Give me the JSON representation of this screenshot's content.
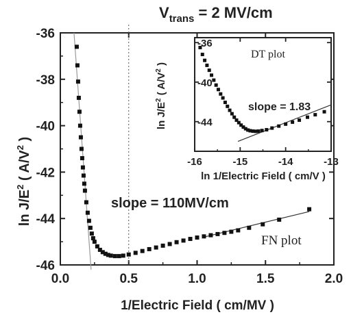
{
  "chart_data": [
    {
      "id": "main",
      "type": "scatter",
      "title_main": "V",
      "title_sub": "trans",
      "title_rest": " = 2 MV/cm",
      "xlabel": "1/Electric Field ( cm/MV )",
      "ylabel_main": "ln J/E",
      "ylabel_sup": "2",
      "ylabel_unit_open": " ( A/V",
      "ylabel_unit_sup": "2",
      "ylabel_unit_close": " )",
      "xlim": [
        0.0,
        2.0
      ],
      "ylim": [
        -46,
        -36
      ],
      "x_ticks": [
        "0.0",
        "0.5",
        "1.0",
        "1.5",
        "2.0"
      ],
      "y_ticks": [
        "-36",
        "-38",
        "-40",
        "-42",
        "-44",
        "-46"
      ],
      "grid": false,
      "annotation_slope": "slope = 110MV/cm",
      "annotation_plot": "FN plot",
      "vertical_marker_x": 0.5,
      "series": [
        {
          "marker": "square",
          "color": "#111111",
          "points": [
            [
              0.12,
              -36.6
            ],
            [
              0.125,
              -37.4
            ],
            [
              0.13,
              -38.1
            ],
            [
              0.135,
              -38.8
            ],
            [
              0.14,
              -39.4
            ],
            [
              0.145,
              -40.0
            ],
            [
              0.15,
              -40.5
            ],
            [
              0.155,
              -41.0
            ],
            [
              0.16,
              -41.4
            ],
            [
              0.165,
              -41.8
            ],
            [
              0.17,
              -42.15
            ],
            [
              0.175,
              -42.5
            ],
            [
              0.18,
              -42.8
            ],
            [
              0.19,
              -43.3
            ],
            [
              0.2,
              -43.75
            ],
            [
              0.21,
              -44.1
            ],
            [
              0.22,
              -44.4
            ],
            [
              0.23,
              -44.65
            ],
            [
              0.24,
              -44.85
            ],
            [
              0.25,
              -45.0
            ],
            [
              0.27,
              -45.2
            ],
            [
              0.29,
              -45.35
            ],
            [
              0.31,
              -45.45
            ],
            [
              0.33,
              -45.52
            ],
            [
              0.35,
              -45.57
            ],
            [
              0.37,
              -45.6
            ],
            [
              0.4,
              -45.62
            ],
            [
              0.43,
              -45.62
            ],
            [
              0.46,
              -45.6
            ],
            [
              0.5,
              -45.55
            ],
            [
              0.55,
              -45.48
            ],
            [
              0.6,
              -45.4
            ],
            [
              0.65,
              -45.32
            ],
            [
              0.7,
              -45.25
            ],
            [
              0.75,
              -45.17
            ],
            [
              0.8,
              -45.1
            ],
            [
              0.85,
              -45.02
            ],
            [
              0.9,
              -44.95
            ],
            [
              0.95,
              -44.88
            ],
            [
              1.0,
              -44.82
            ],
            [
              1.05,
              -44.77
            ],
            [
              1.1,
              -44.72
            ],
            [
              1.15,
              -44.67
            ],
            [
              1.2,
              -44.62
            ],
            [
              1.25,
              -44.57
            ],
            [
              1.3,
              -44.51
            ],
            [
              1.38,
              -44.4
            ],
            [
              1.48,
              -44.25
            ],
            [
              1.6,
              -44.05
            ],
            [
              1.82,
              -43.6
            ]
          ]
        }
      ],
      "fit_lines": [
        {
          "from": [
            1.05,
            -44.8
          ],
          "to": [
            1.82,
            -43.7
          ],
          "color": "#333333"
        },
        {
          "from": [
            0.1,
            -36.0
          ],
          "to": [
            0.225,
            -46.2
          ],
          "color": "#999999"
        }
      ]
    },
    {
      "id": "inset",
      "type": "scatter",
      "xlabel": "ln 1/Electric Field ( cm/V )",
      "ylabel_main": "ln J/E",
      "ylabel_sup": "2",
      "ylabel_unit_open": " ( A/V",
      "ylabel_unit_sup": "2",
      "ylabel_unit_close": " )",
      "xlim": [
        -16,
        -13
      ],
      "ylim": [
        -47,
        -35.5
      ],
      "x_ticks": [
        "-16",
        "-15",
        "-14",
        "-13"
      ],
      "y_ticks": [
        "-36",
        "-40",
        "-44"
      ],
      "grid": false,
      "annotation_plot": "DT  plot",
      "annotation_slope": "slope = 1.83",
      "series": [
        {
          "marker": "square",
          "color": "#111111",
          "points": [
            [
              -15.88,
              -36.5
            ],
            [
              -15.83,
              -37.2
            ],
            [
              -15.78,
              -37.8
            ],
            [
              -15.73,
              -38.3
            ],
            [
              -15.68,
              -38.8
            ],
            [
              -15.63,
              -39.3
            ],
            [
              -15.58,
              -39.8
            ],
            [
              -15.53,
              -40.3
            ],
            [
              -15.48,
              -40.75
            ],
            [
              -15.43,
              -41.2
            ],
            [
              -15.38,
              -41.6
            ],
            [
              -15.33,
              -42.05
            ],
            [
              -15.28,
              -42.45
            ],
            [
              -15.23,
              -42.85
            ],
            [
              -15.18,
              -43.2
            ],
            [
              -15.13,
              -43.55
            ],
            [
              -15.08,
              -43.85
            ],
            [
              -15.03,
              -44.1
            ],
            [
              -14.98,
              -44.35
            ],
            [
              -14.93,
              -44.55
            ],
            [
              -14.88,
              -44.72
            ],
            [
              -14.83,
              -44.85
            ],
            [
              -14.78,
              -44.92
            ],
            [
              -14.72,
              -44.96
            ],
            [
              -14.66,
              -44.98
            ],
            [
              -14.6,
              -44.96
            ],
            [
              -14.52,
              -44.9
            ],
            [
              -14.42,
              -44.82
            ],
            [
              -14.3,
              -44.65
            ],
            [
              -14.15,
              -44.45
            ],
            [
              -14.0,
              -44.25
            ],
            [
              -13.85,
              -44.05
            ],
            [
              -13.7,
              -43.85
            ],
            [
              -13.52,
              -43.55
            ],
            [
              -13.35,
              -43.3
            ],
            [
              -13.15,
              -43.0
            ]
          ]
        }
      ],
      "fit_lines": [
        {
          "from": [
            -15.05,
            -46.0
          ],
          "to": [
            -13.0,
            -42.3
          ],
          "color": "#333333"
        }
      ]
    }
  ]
}
